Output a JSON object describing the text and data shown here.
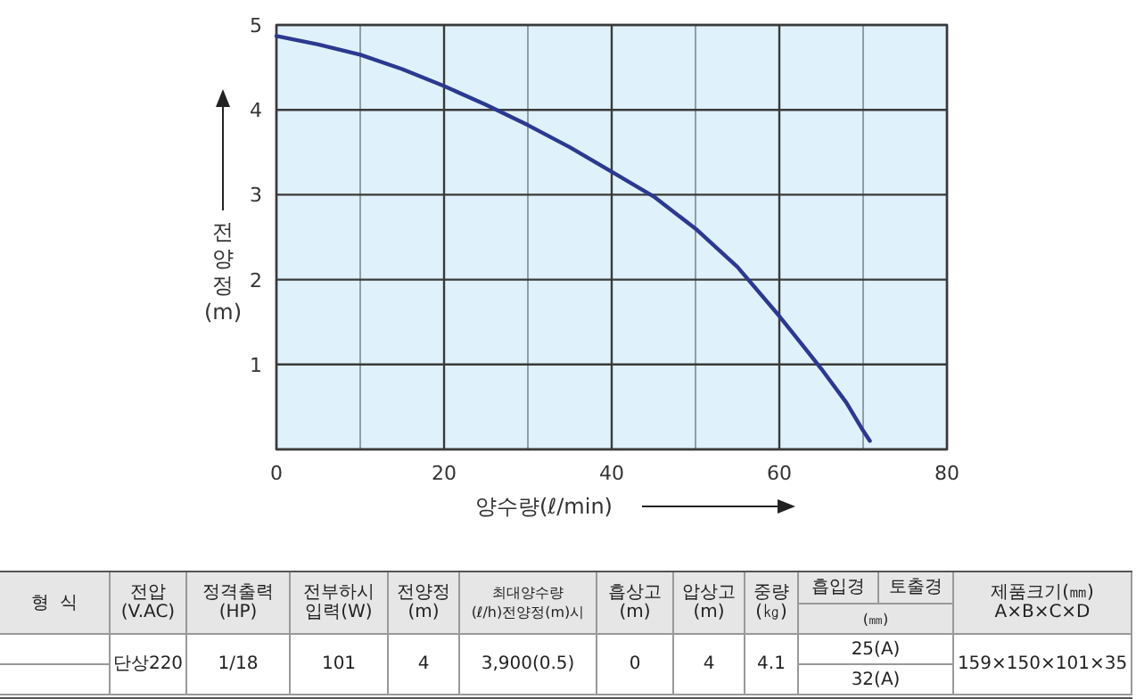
{
  "chart_data": [
    {
      "type": "line",
      "xlabel": "양수량(ℓ/min)",
      "ylabel": "전양정(m)",
      "xlim": [
        0,
        80
      ],
      "ylim": [
        0,
        5
      ],
      "xticks": [
        0,
        {
          "value": 10,
          "label": null
        },
        20,
        {
          "value": 30,
          "label": null
        },
        40,
        {
          "value": 50,
          "label": null
        },
        60,
        {
          "value": 70,
          "label": null
        },
        80
      ],
      "yticks": [
        {
          "value": 0,
          "label": null
        },
        1,
        2,
        3,
        4,
        5
      ],
      "grid": true,
      "marker": "none",
      "line_style": "solid",
      "series": [
        {
          "color": "#2b3990",
          "x": [
            0,
            5,
            10,
            15,
            20,
            25,
            30,
            35,
            40,
            45,
            50,
            55,
            60,
            63,
            65,
            68,
            70,
            70.8
          ],
          "values": [
            4.87,
            4.77,
            4.65,
            4.48,
            4.28,
            4.06,
            3.82,
            3.56,
            3.27,
            2.98,
            2.6,
            2.15,
            1.57,
            1.2,
            0.95,
            0.55,
            0.22,
            0.1
          ]
        }
      ]
    },
    {
      "type": "other",
      "annotations": [
        "형  식",
        "전압\n(V.AC)",
        "정격출력\n(HP)",
        "전부하시\n입력(W)",
        "전양정\n(m)",
        "최대양수량\n(ℓ/h)전양정(m)시",
        "흡상고\n(m)",
        "압상고\n(m)",
        "중량\n(㎏)",
        "흡입경",
        "토출경",
        "(㎜)",
        "제품크기(㎜)\nA×B×C×D",
        "단상220",
        "1/18",
        "101",
        "4",
        "3,900(0.5)",
        "0",
        "4",
        "4.1",
        "25(A)",
        "32(A)",
        "159×150×101×35"
      ]
    }
  ]
}
